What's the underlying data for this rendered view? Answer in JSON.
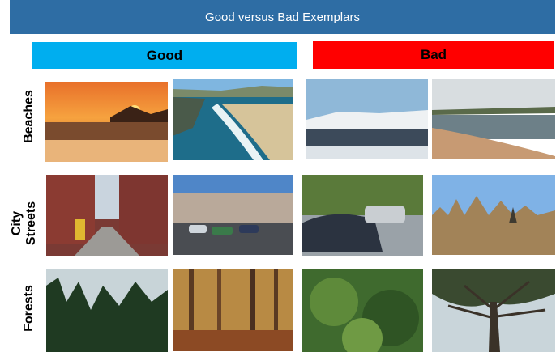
{
  "title": "Good versus Bad Exemplars",
  "columns": {
    "good": "Good",
    "bad": "Bad"
  },
  "rows": {
    "beaches": "Beaches",
    "city_streets": [
      "City",
      "Streets"
    ],
    "forests": "Forests"
  },
  "photos": [
    "beach-sunset-photo",
    "beach-coast-photo",
    "beach-snowy-shore-photo",
    "beach-lake-photo",
    "city-brick-street-photo",
    "city-plaza-photo",
    "city-parked-car-photo",
    "city-guild-houses-photo",
    "forest-pines-photo",
    "forest-autumn-photo",
    "forest-garden-photo",
    "forest-tree-canopy-photo"
  ]
}
